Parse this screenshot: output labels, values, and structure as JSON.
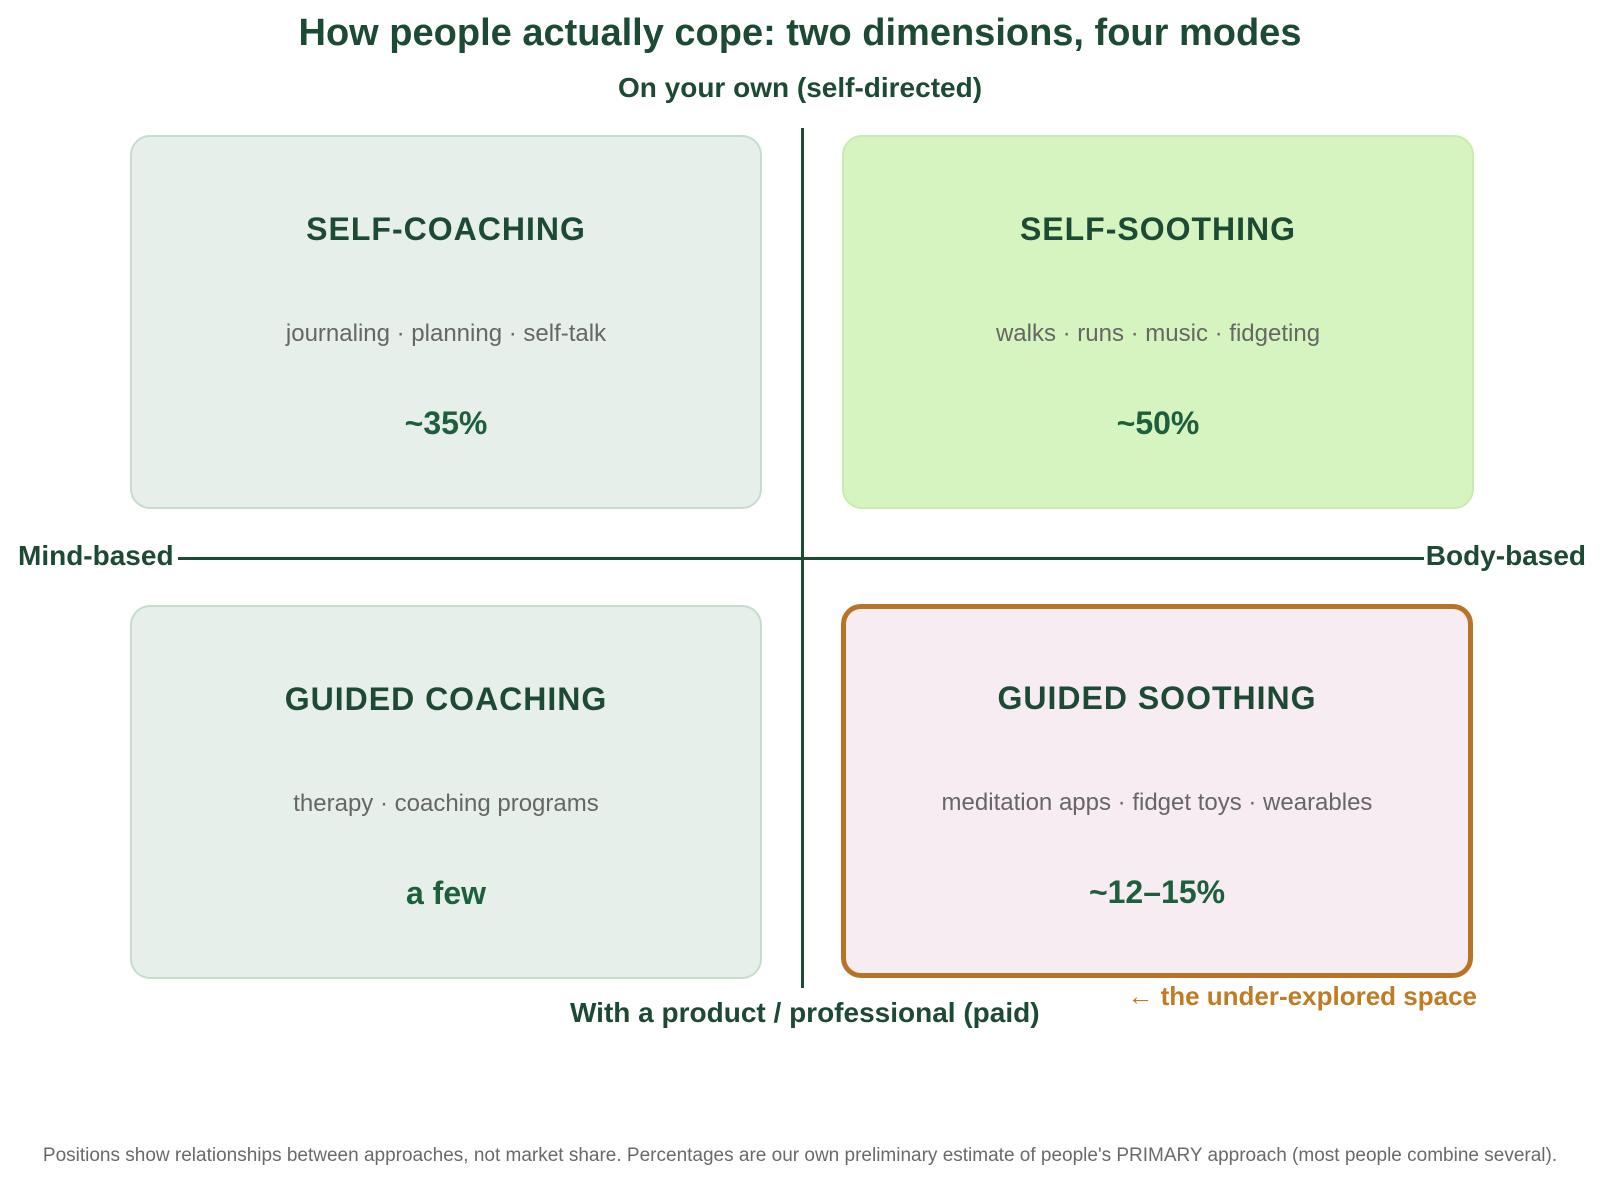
{
  "title": "How people actually cope: two dimensions, four modes",
  "axes": {
    "top": "On your own (self-directed)",
    "bottom": "With a product / professional (paid)",
    "left": "Mind-based",
    "right": "Body-based"
  },
  "quadrants": [
    {
      "name": "SELF-COACHING",
      "examples": "journaling · planning · self-talk",
      "share": "~35%",
      "color": "#e6efe9"
    },
    {
      "name": "SELF-SOOTHING",
      "examples": "walks · runs · music · fidgeting",
      "share": "~50%",
      "color": "#d6f4bf"
    },
    {
      "name": "GUIDED COACHING",
      "examples": "therapy · coaching programs",
      "share": "a few",
      "color": "#e6efe9"
    },
    {
      "name": "GUIDED SOOTHING",
      "examples": "meditation apps · fidget toys · wearables",
      "share": "~12–15%",
      "color": "#f6ecf2",
      "highlight_border": "#b87326"
    }
  ],
  "highlight_note": "← the under-explored space",
  "footnote": "Positions show relationships between approaches, not market share. Percentages are our own preliminary estimate of people's PRIMARY approach (most people combine several)."
}
